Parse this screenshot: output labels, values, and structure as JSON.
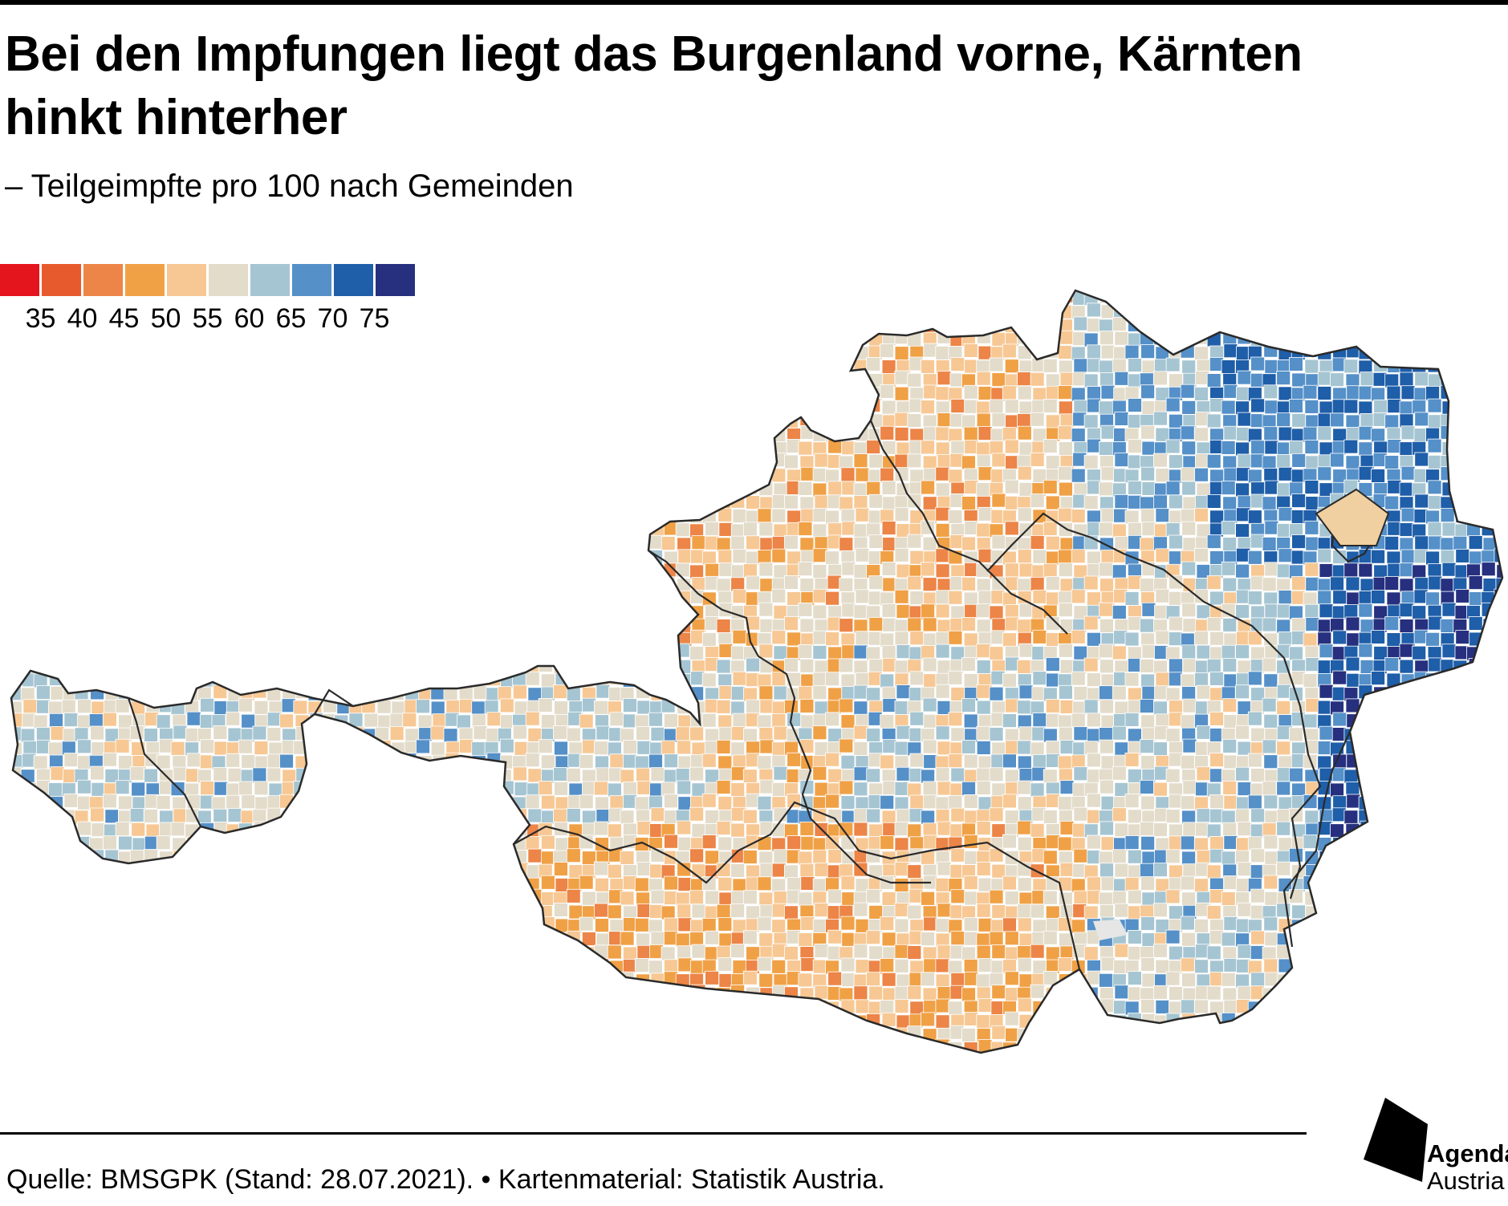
{
  "title": "Bei den Impfungen liegt das Burgenland vorne, Kärnten hinkt hinterher",
  "subtitle": "– Teilgeimpfte pro 100 nach Gemeinden",
  "legend": {
    "colors": [
      "#e4151c",
      "#e75a2e",
      "#ec8547",
      "#f0a146",
      "#f7c894",
      "#e3dccb",
      "#a6c5d2",
      "#5590c8",
      "#1f5ea8",
      "#26307f"
    ],
    "thresholds": [
      "35",
      "40",
      "45",
      "50",
      "55",
      "60",
      "65",
      "70",
      "75"
    ]
  },
  "map": {
    "region": "Österreich",
    "no_data_color": "#e6e6e6"
  },
  "source": "Quelle: BMSGPK (Stand: 28.07.2021).  • Kartenmaterial: Statistik Austria.",
  "logo": {
    "line1": "Agenda",
    "line2": "Austria"
  }
}
